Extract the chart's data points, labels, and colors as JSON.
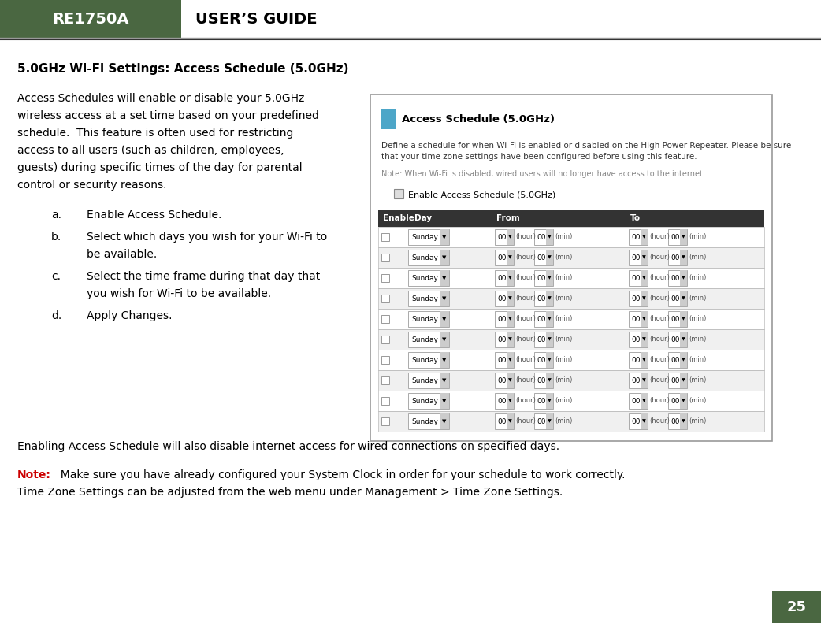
{
  "page_width": 10.42,
  "page_height": 7.91,
  "dpi": 100,
  "bg_color": "#ffffff",
  "header": {
    "box_color": "#4a6741",
    "box_text": "RE1750A",
    "box_text_color": "#ffffff",
    "title_text": "USER’S GUIDE",
    "title_color": "#000000"
  },
  "section_title": "5.0GHz Wi-Fi Settings: Access Schedule (5.0GHz)",
  "body_text": "Access Schedules will enable or disable your 5.0GHz\nwireless access at a set time based on your predefined\nschedule.  This feature is often used for restricting\naccess to all users (such as children, employees,\nguests) during specific times of the day for parental\ncontrol or security reasons.",
  "list_items": [
    {
      "label": "a.",
      "text": "Enable Access Schedule."
    },
    {
      "label": "b.",
      "text": "Select which days you wish for your Wi-Fi to\nbe available."
    },
    {
      "label": "c.",
      "text": "Select the time frame during that day that\nyou wish for Wi-Fi to be available."
    },
    {
      "label": "d.",
      "text": "Apply Changes."
    }
  ],
  "footer_text": "Enabling Access Schedule will also disable internet access for wired connections on specified days.",
  "note_label": "Note:",
  "note_label_color": "#cc0000",
  "note_text1": "  Make sure you have already configured your System Clock in order for your schedule to work correctly.",
  "note_text2": "Time Zone Settings can be adjusted from the web menu under Management > Time Zone Settings.",
  "page_number": "25",
  "page_number_bg": "#4a6741",
  "page_number_color": "#ffffff",
  "screenshot": {
    "title": "Access Schedule (5.0GHz)",
    "title_icon_color": "#4da6c8",
    "desc1a": "Define a schedule for when Wi-Fi is enabled or disabled on the ",
    "desc1b": "High Power Repeater",
    "desc1b_color": "#cc6600",
    "desc1c": ". Please be sure",
    "desc2": "that your time zone settings have been configured before using this feature.",
    "sc_note": "Note: When Wi-Fi is disabled, wired users will no longer have access to the internet.",
    "sc_note_color": "#888888",
    "checkbox_label": "Enable Access Schedule (5.0GHz)",
    "table_header_bg": "#333333",
    "table_header_color": "#ffffff",
    "table_cols": [
      "Enable",
      "Day",
      "From",
      "To"
    ],
    "num_rows": 10,
    "table_alt_row": "#f0f0f0",
    "table_row": "#ffffff",
    "border_color": "#aaaaaa",
    "outer_border": "#999999"
  }
}
